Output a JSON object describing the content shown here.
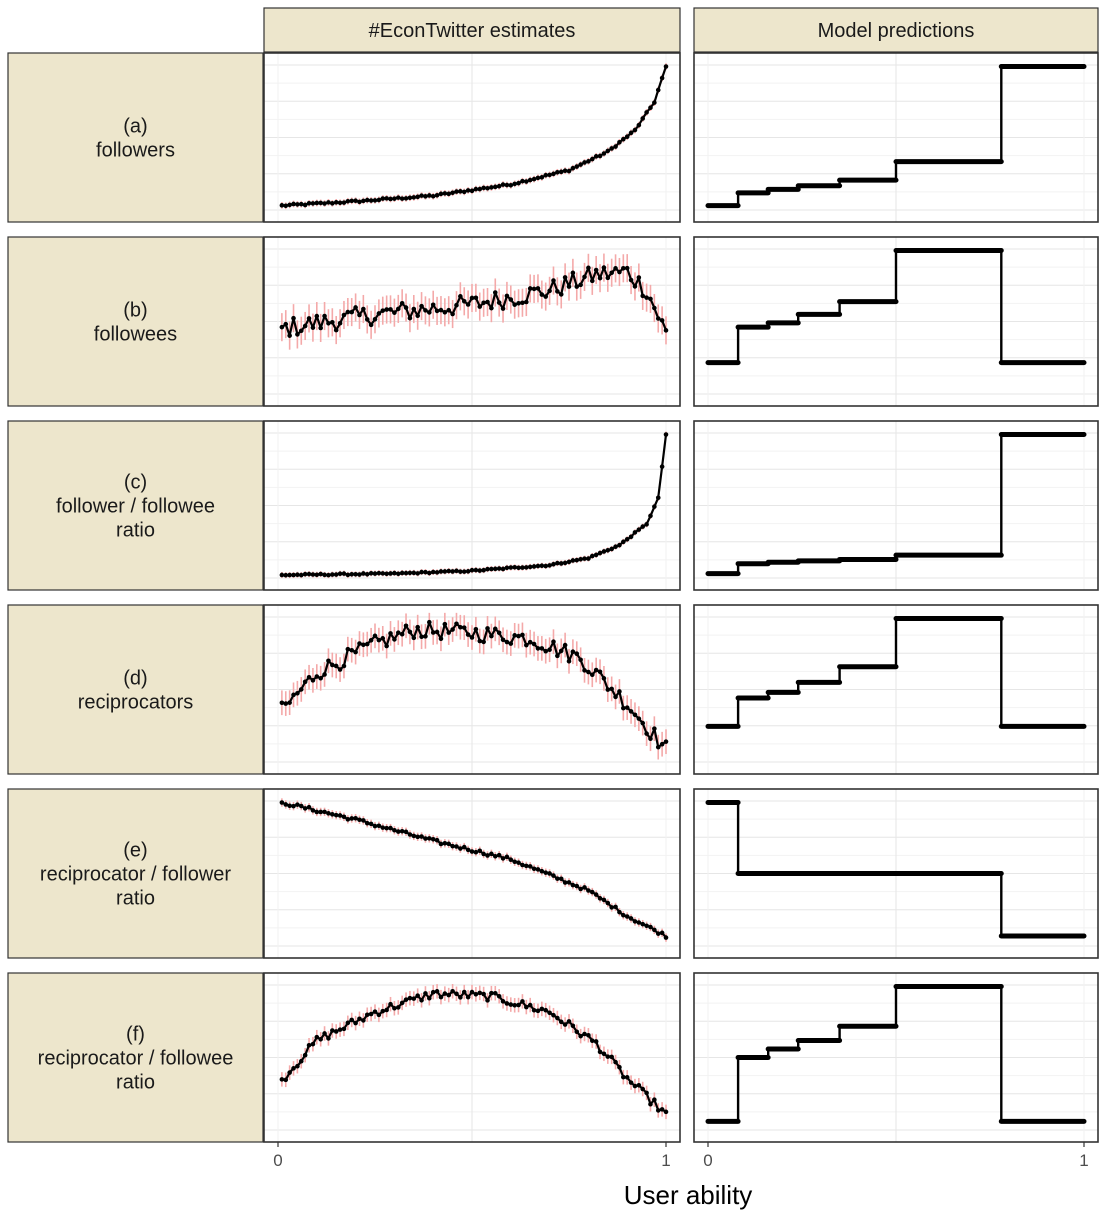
{
  "colors": {
    "strip_fill": "#ede6cc",
    "panel_border": "#333333",
    "grid_major": "#e6e6e6",
    "grid_minor": "#f2f2f2",
    "line": "#000000",
    "error_bar": "#f4a9a9"
  },
  "chart_data": {
    "type": "line",
    "title": "",
    "xlabel": "User ability",
    "ylabel": "",
    "xlim": [
      0,
      1
    ],
    "x_ticks": [
      "0",
      "1"
    ],
    "grid": true,
    "columns": [
      {
        "id": "econtwitter",
        "label": "#EconTwitter estimates",
        "style": "dotted line with error bars"
      },
      {
        "id": "model",
        "label": "Model predictions",
        "style": "step function"
      }
    ],
    "rows": [
      {
        "letter": "(a)",
        "label_lines": [
          "followers"
        ],
        "estimates": {
          "n_points": 100,
          "anchors": [
            [
              0.01,
              0.02
            ],
            [
              0.2,
              0.05
            ],
            [
              0.4,
              0.09
            ],
            [
              0.6,
              0.17
            ],
            [
              0.75,
              0.27
            ],
            [
              0.85,
              0.4
            ],
            [
              0.92,
              0.55
            ],
            [
              0.97,
              0.75
            ],
            [
              1.0,
              1.0
            ]
          ],
          "noise": 0.007
        },
        "model_steps": [
          [
            0.0,
            0.08,
            0.02
          ],
          [
            0.08,
            0.16,
            0.11
          ],
          [
            0.16,
            0.24,
            0.135
          ],
          [
            0.24,
            0.35,
            0.16
          ],
          [
            0.35,
            0.5,
            0.2
          ],
          [
            0.5,
            0.78,
            0.33
          ],
          [
            0.78,
            1.0,
            1.0
          ]
        ]
      },
      {
        "letter": "(b)",
        "label_lines": [
          "followees"
        ],
        "estimates": {
          "n_points": 100,
          "anchors": [
            [
              0.01,
              0.45
            ],
            [
              0.25,
              0.55
            ],
            [
              0.5,
              0.62
            ],
            [
              0.7,
              0.72
            ],
            [
              0.82,
              0.83
            ],
            [
              0.9,
              0.85
            ],
            [
              0.95,
              0.72
            ],
            [
              1.0,
              0.42
            ]
          ],
          "noise": 0.07
        },
        "model_steps": [
          [
            0.0,
            0.08,
            0.21
          ],
          [
            0.08,
            0.16,
            0.46
          ],
          [
            0.16,
            0.24,
            0.49
          ],
          [
            0.24,
            0.35,
            0.55
          ],
          [
            0.35,
            0.5,
            0.64
          ],
          [
            0.5,
            0.78,
            1.0
          ],
          [
            0.78,
            1.0,
            0.21
          ]
        ]
      },
      {
        "letter": "(c)",
        "label_lines": [
          "follower / followee",
          "ratio"
        ],
        "estimates": {
          "n_points": 100,
          "anchors": [
            [
              0.01,
              0.01
            ],
            [
              0.3,
              0.02
            ],
            [
              0.5,
              0.04
            ],
            [
              0.7,
              0.08
            ],
            [
              0.8,
              0.13
            ],
            [
              0.88,
              0.22
            ],
            [
              0.95,
              0.37
            ],
            [
              0.98,
              0.55
            ],
            [
              1.0,
              1.0
            ]
          ],
          "noise": 0.005
        },
        "model_steps": [
          [
            0.0,
            0.08,
            0.02
          ],
          [
            0.08,
            0.16,
            0.09
          ],
          [
            0.16,
            0.24,
            0.1
          ],
          [
            0.24,
            0.35,
            0.11
          ],
          [
            0.35,
            0.5,
            0.12
          ],
          [
            0.5,
            0.78,
            0.15
          ],
          [
            0.78,
            1.0,
            1.0
          ]
        ]
      },
      {
        "letter": "(d)",
        "label_lines": [
          "reciprocators"
        ],
        "estimates": {
          "n_points": 100,
          "anchors": [
            [
              0.01,
              0.35
            ],
            [
              0.1,
              0.62
            ],
            [
              0.25,
              0.82
            ],
            [
              0.35,
              0.92
            ],
            [
              0.5,
              0.9
            ],
            [
              0.65,
              0.86
            ],
            [
              0.78,
              0.72
            ],
            [
              0.9,
              0.4
            ],
            [
              1.0,
              0.08
            ]
          ],
          "noise": 0.06
        },
        "model_steps": [
          [
            0.0,
            0.08,
            0.24
          ],
          [
            0.08,
            0.16,
            0.44
          ],
          [
            0.16,
            0.24,
            0.48
          ],
          [
            0.24,
            0.35,
            0.55
          ],
          [
            0.35,
            0.5,
            0.66
          ],
          [
            0.5,
            0.78,
            1.0
          ],
          [
            0.78,
            1.0,
            0.24
          ]
        ]
      },
      {
        "letter": "(e)",
        "label_lines": [
          "reciprocator / follower",
          "ratio"
        ],
        "estimates": {
          "n_points": 100,
          "anchors": [
            [
              0.01,
              1.0
            ],
            [
              0.2,
              0.88
            ],
            [
              0.4,
              0.73
            ],
            [
              0.6,
              0.6
            ],
            [
              0.8,
              0.38
            ],
            [
              0.9,
              0.2
            ],
            [
              1.0,
              0.06
            ]
          ],
          "noise": 0.012
        },
        "model_steps": [
          [
            0.0,
            0.08,
            1.0
          ],
          [
            0.08,
            0.78,
            0.5
          ],
          [
            0.78,
            1.0,
            0.06
          ]
        ]
      },
      {
        "letter": "(f)",
        "label_lines": [
          "reciprocator / followee",
          "ratio"
        ],
        "estimates": {
          "n_points": 100,
          "anchors": [
            [
              0.01,
              0.34
            ],
            [
              0.1,
              0.62
            ],
            [
              0.25,
              0.82
            ],
            [
              0.4,
              0.95
            ],
            [
              0.55,
              0.93
            ],
            [
              0.7,
              0.82
            ],
            [
              0.82,
              0.6
            ],
            [
              0.9,
              0.35
            ],
            [
              1.0,
              0.1
            ]
          ],
          "noise": 0.03
        },
        "model_steps": [
          [
            0.0,
            0.08,
            0.05
          ],
          [
            0.08,
            0.16,
            0.5
          ],
          [
            0.16,
            0.24,
            0.56
          ],
          [
            0.24,
            0.35,
            0.62
          ],
          [
            0.35,
            0.5,
            0.72
          ],
          [
            0.5,
            0.78,
            1.0
          ],
          [
            0.78,
            1.0,
            0.05
          ]
        ]
      }
    ]
  }
}
